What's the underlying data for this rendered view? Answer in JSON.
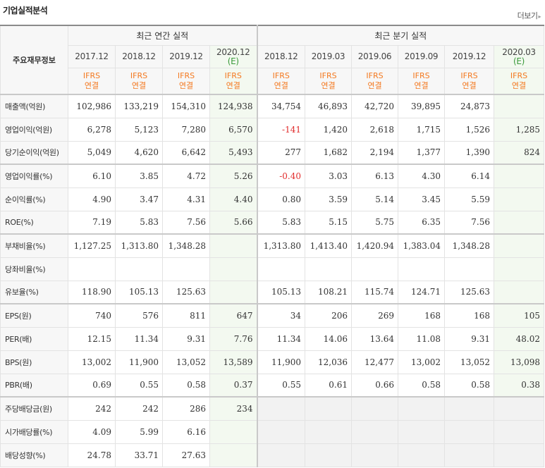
{
  "title": "기업실적분석",
  "more_label": "더보기",
  "table": {
    "corner_label": "주요재무정보",
    "annual_header": "최근 연간 실적",
    "quarter_header": "최근 분기 실적",
    "periods": [
      {
        "date": "2017.12",
        "est": "",
        "std1": "IFRS",
        "std2": "연결"
      },
      {
        "date": "2018.12",
        "est": "",
        "std1": "IFRS",
        "std2": "연결"
      },
      {
        "date": "2019.12",
        "est": "",
        "std1": "IFRS",
        "std2": "연결"
      },
      {
        "date": "2020.12",
        "est": "(E)",
        "std1": "IFRS",
        "std2": "연결"
      },
      {
        "date": "2018.12",
        "est": "",
        "std1": "IFRS",
        "std2": "연결"
      },
      {
        "date": "2019.03",
        "est": "",
        "std1": "IFRS",
        "std2": "연결"
      },
      {
        "date": "2019.06",
        "est": "",
        "std1": "IFRS",
        "std2": "연결"
      },
      {
        "date": "2019.09",
        "est": "",
        "std1": "IFRS",
        "std2": "연결"
      },
      {
        "date": "2019.12",
        "est": "",
        "std1": "IFRS",
        "std2": "연결"
      },
      {
        "date": "2020.03",
        "est": "(E)",
        "std1": "IFRS",
        "std2": "연결"
      }
    ],
    "rows": [
      {
        "label": "매출액(억원)",
        "values": [
          "102,986",
          "133,219",
          "154,310",
          "124,938",
          "34,754",
          "46,893",
          "42,720",
          "39,895",
          "24,873",
          ""
        ]
      },
      {
        "label": "영업이익(억원)",
        "values": [
          "6,278",
          "5,123",
          "7,280",
          "6,570",
          "-141",
          "1,420",
          "2,618",
          "1,715",
          "1,526",
          "1,285"
        ]
      },
      {
        "label": "당기순이익(억원)",
        "values": [
          "5,049",
          "4,620",
          "6,642",
          "5,493",
          "277",
          "1,682",
          "2,194",
          "1,377",
          "1,390",
          "824"
        ]
      },
      {
        "label": "영업이익률(%)",
        "values": [
          "6.10",
          "3.85",
          "4.72",
          "5.26",
          "-0.40",
          "3.03",
          "6.13",
          "4.30",
          "6.14",
          ""
        ]
      },
      {
        "label": "순이익률(%)",
        "values": [
          "4.90",
          "3.47",
          "4.31",
          "4.40",
          "0.80",
          "3.59",
          "5.14",
          "3.45",
          "5.59",
          ""
        ]
      },
      {
        "label": "ROE(%)",
        "values": [
          "7.19",
          "5.83",
          "7.56",
          "5.66",
          "5.83",
          "5.15",
          "5.75",
          "6.35",
          "7.56",
          ""
        ]
      },
      {
        "label": "부채비율(%)",
        "values": [
          "1,127.25",
          "1,313.80",
          "1,348.28",
          "",
          "1,313.80",
          "1,413.40",
          "1,420.94",
          "1,383.04",
          "1,348.28",
          ""
        ]
      },
      {
        "label": "당좌비율(%)",
        "values": [
          "",
          "",
          "",
          "",
          "",
          "",
          "",
          "",
          "",
          ""
        ]
      },
      {
        "label": "유보율(%)",
        "values": [
          "118.90",
          "105.13",
          "125.63",
          "",
          "105.13",
          "108.21",
          "115.74",
          "124.71",
          "125.63",
          ""
        ]
      },
      {
        "label": "EPS(원)",
        "values": [
          "740",
          "576",
          "811",
          "647",
          "34",
          "206",
          "269",
          "168",
          "168",
          "105"
        ]
      },
      {
        "label": "PER(배)",
        "values": [
          "12.15",
          "11.34",
          "9.31",
          "7.76",
          "11.34",
          "14.06",
          "13.64",
          "11.08",
          "9.31",
          "48.02"
        ]
      },
      {
        "label": "BPS(원)",
        "values": [
          "13,002",
          "11,900",
          "13,052",
          "13,589",
          "11,900",
          "12,036",
          "12,477",
          "13,002",
          "13,052",
          "13,098"
        ]
      },
      {
        "label": "PBR(배)",
        "values": [
          "0.69",
          "0.55",
          "0.58",
          "0.37",
          "0.55",
          "0.61",
          "0.66",
          "0.58",
          "0.58",
          "0.38"
        ]
      },
      {
        "label": "주당배당금(원)",
        "values": [
          "242",
          "242",
          "286",
          "234",
          "",
          "",
          "",
          "",
          "",
          ""
        ]
      },
      {
        "label": "시가배당률(%)",
        "values": [
          "4.09",
          "5.99",
          "6.16",
          "",
          "",
          "",
          "",
          "",
          "",
          ""
        ]
      },
      {
        "label": "배당성향(%)",
        "values": [
          "24.78",
          "33.71",
          "27.63",
          "",
          "",
          "",
          "",
          "",
          "",
          ""
        ]
      }
    ]
  },
  "colors": {
    "ifrs": "#f47920",
    "estimate": "#3a9a3a",
    "negative": "#e12b2b"
  }
}
